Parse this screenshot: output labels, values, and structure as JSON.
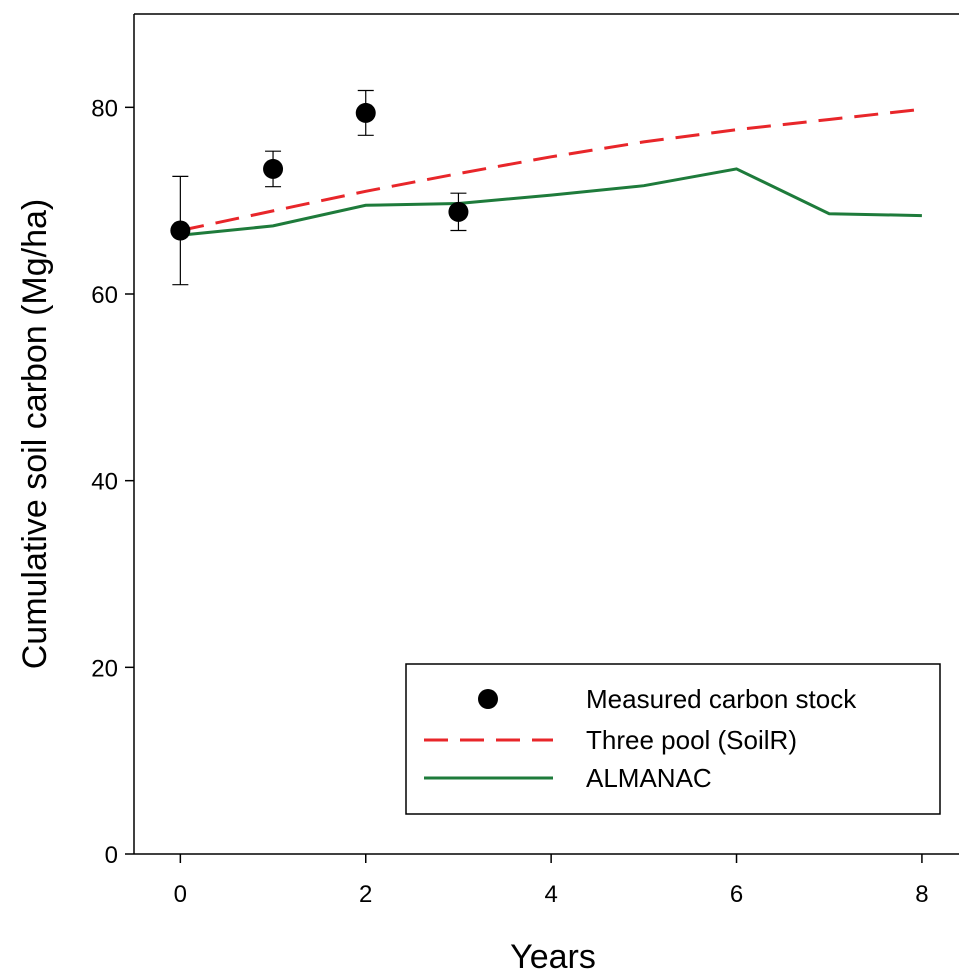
{
  "chart_data": {
    "type": "line",
    "title": "",
    "xlabel": "Years",
    "ylabel": "Cumulative soil carbon (Mg/ha)",
    "xlim": [
      -0.5,
      8.4
    ],
    "ylim": [
      0,
      90
    ],
    "xticks": [
      0,
      2,
      4,
      6,
      8
    ],
    "yticks": [
      0,
      20,
      40,
      60,
      80
    ],
    "grid": false,
    "legend_position": "bottom-right",
    "series": [
      {
        "name": "Measured carbon stock",
        "kind": "scatter",
        "color": "#000000",
        "x": [
          0,
          1,
          2,
          3
        ],
        "y": [
          66.8,
          73.4,
          79.4,
          68.8
        ],
        "error": [
          5.8,
          1.9,
          2.4,
          2.0
        ]
      },
      {
        "name": "Three pool (SoilR)",
        "kind": "line",
        "style": "dashed",
        "color": "#e8262a",
        "x": [
          0,
          1,
          2,
          3,
          4,
          5,
          6,
          7,
          8
        ],
        "y": [
          66.8,
          68.9,
          71.0,
          72.9,
          74.7,
          76.3,
          77.6,
          78.7,
          79.8
        ]
      },
      {
        "name": "ALMANAC",
        "kind": "line",
        "style": "solid",
        "color": "#1e7b3b",
        "x": [
          0,
          1,
          2,
          3,
          4,
          5,
          6,
          7,
          8
        ],
        "y": [
          66.3,
          67.3,
          69.5,
          69.7,
          70.6,
          71.6,
          73.4,
          68.6,
          68.4
        ]
      }
    ]
  }
}
